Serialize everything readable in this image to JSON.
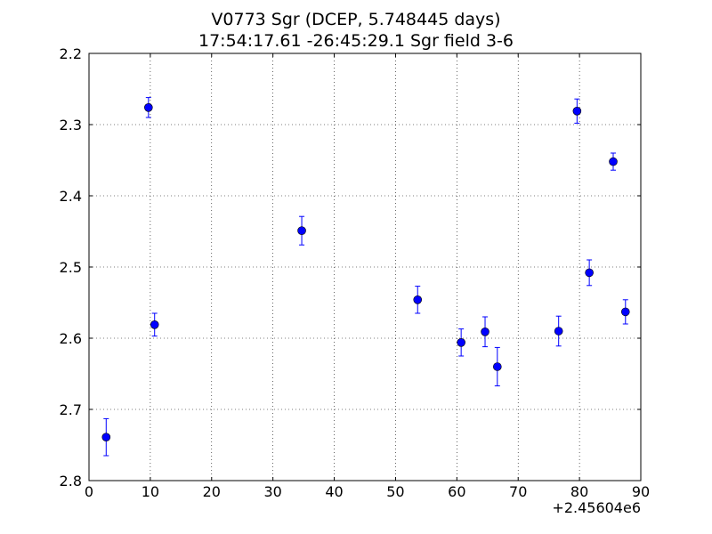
{
  "chart_data": {
    "type": "scatter",
    "title": "V0773 Sgr (DCEP, 5.748445 days)",
    "subtitle": "17:54:17.61 -26:45:29.1 Sgr field 3-6",
    "xlabel": "",
    "ylabel": "",
    "x_offset_label": "+2.45604e6",
    "xlim": [
      0,
      90
    ],
    "ylim": [
      2.8,
      2.2
    ],
    "y_inverted": true,
    "grid": true,
    "x_ticks": [
      "0",
      "10",
      "20",
      "30",
      "40",
      "50",
      "60",
      "70",
      "80",
      "90"
    ],
    "y_ticks": [
      "2.2",
      "2.3",
      "2.4",
      "2.5",
      "2.6",
      "2.7",
      "2.8"
    ],
    "series": [
      {
        "color": "#0000ff",
        "marker": "circle",
        "points": [
          {
            "x": 2.8,
            "y": 2.739,
            "err": 0.026
          },
          {
            "x": 9.7,
            "y": 2.276,
            "err": 0.014
          },
          {
            "x": 10.7,
            "y": 2.581,
            "err": 0.016
          },
          {
            "x": 34.7,
            "y": 2.449,
            "err": 0.02
          },
          {
            "x": 53.6,
            "y": 2.546,
            "err": 0.019
          },
          {
            "x": 60.7,
            "y": 2.606,
            "err": 0.019
          },
          {
            "x": 64.6,
            "y": 2.591,
            "err": 0.021
          },
          {
            "x": 66.6,
            "y": 2.64,
            "err": 0.027
          },
          {
            "x": 76.6,
            "y": 2.59,
            "err": 0.021
          },
          {
            "x": 79.6,
            "y": 2.281,
            "err": 0.017
          },
          {
            "x": 81.6,
            "y": 2.508,
            "err": 0.018
          },
          {
            "x": 85.5,
            "y": 2.352,
            "err": 0.012
          },
          {
            "x": 87.5,
            "y": 2.563,
            "err": 0.017
          }
        ]
      }
    ]
  }
}
